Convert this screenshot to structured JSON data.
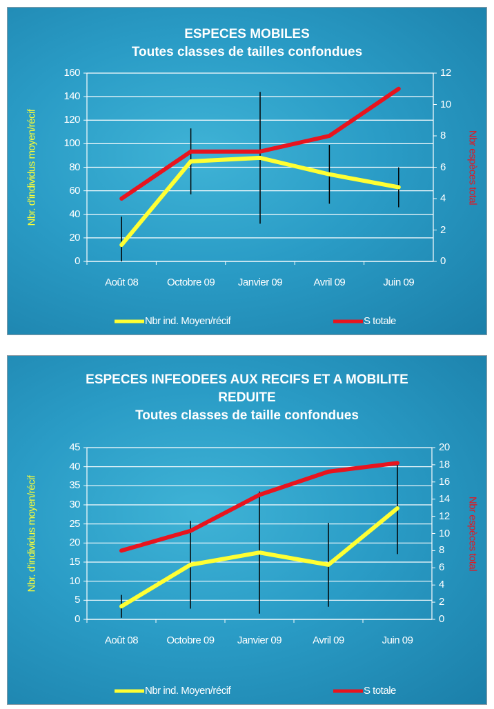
{
  "chart_data": [
    {
      "type": "line",
      "title": "ESPECES MOBILES",
      "subtitle": "Toutes classes de tailles confondues",
      "categories": [
        "Août 08",
        "Octobre 09",
        "Janvier 09",
        "Avril 09",
        "Juin 09"
      ],
      "series": [
        {
          "name": "Nbr ind. Moyen/récif",
          "color": "#ffff33",
          "values": [
            14,
            85,
            88,
            74,
            63
          ],
          "errors": [
            24,
            28,
            56,
            25,
            17
          ]
        },
        {
          "name": "S totale",
          "color": "#e8141e",
          "values": [
            4,
            7,
            7,
            8,
            11
          ],
          "axis": "y2"
        }
      ],
      "ylabel": "Nbr. d'individus moyen/récif",
      "y2label": "Nbr espèces total",
      "ylim": [
        0,
        160
      ],
      "yticks": [
        0,
        20,
        40,
        60,
        80,
        100,
        120,
        140,
        160
      ],
      "y2lim": [
        0,
        12
      ],
      "y2ticks": [
        0,
        2,
        4,
        6,
        8,
        10,
        12
      ],
      "grid": true
    },
    {
      "type": "line",
      "title": "ESPECES INFEODEES AUX RECIFS ET A MOBILITE REDUITE",
      "subtitle": "Toutes classes de taille confondues",
      "categories": [
        "Août 08",
        "Octobre 09",
        "Janvier 09",
        "Avril 09",
        "Juin 09"
      ],
      "series": [
        {
          "name": "Nbr ind. Moyen/récif",
          "color": "#ffff33",
          "values": [
            3.4,
            14.3,
            17.5,
            14.3,
            29.1
          ],
          "errors": [
            3,
            11.5,
            16,
            11,
            12
          ]
        },
        {
          "name": "S totale",
          "color": "#e8141e",
          "values": [
            8,
            10.3,
            14.5,
            17.2,
            18.2
          ],
          "axis": "y2"
        }
      ],
      "ylabel": "Nbr. d'individus moyen/récif",
      "y2label": "Nbr espèces total",
      "ylim": [
        0,
        45
      ],
      "yticks": [
        0,
        5,
        10,
        15,
        20,
        25,
        30,
        35,
        40,
        45
      ],
      "y2lim": [
        0,
        20
      ],
      "y2ticks": [
        0,
        2,
        4,
        6,
        8,
        10,
        12,
        14,
        16,
        18,
        20
      ],
      "grid": true
    }
  ]
}
